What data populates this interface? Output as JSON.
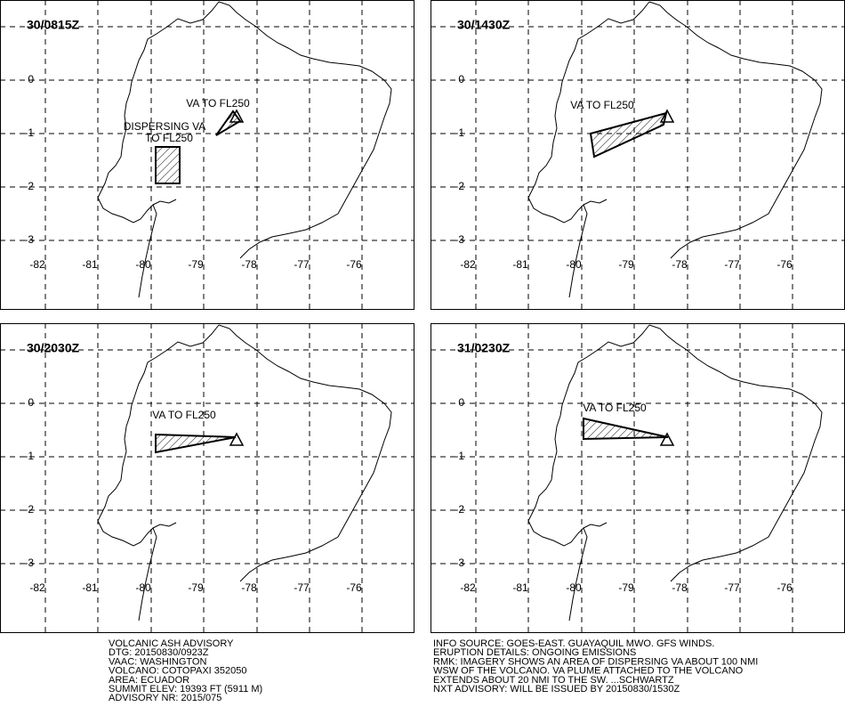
{
  "panels": [
    {
      "time": "30/0815Z",
      "annotations": [
        "VA TO FL250",
        "DISPERSING VA",
        "TO FL250"
      ]
    },
    {
      "time": "30/1430Z",
      "annotations": [
        "VA TO FL250"
      ]
    },
    {
      "time": "30/2030Z",
      "annotations": [
        "VA TO FL250"
      ]
    },
    {
      "time": "31/0230Z",
      "annotations": [
        "VA TO FL250"
      ]
    }
  ],
  "lat_labels": [
    "0",
    "-1",
    "-2",
    "-3"
  ],
  "lon_labels": [
    "-82",
    "-81",
    "-80",
    "-79",
    "-78",
    "-77",
    "-76"
  ],
  "advisory_left": [
    "VOLCANIC ASH ADVISORY",
    "DTG: 20150830/0923Z",
    "VAAC: WASHINGTON",
    "VOLCANO: COTOPAXI 352050",
    "AREA: ECUADOR",
    "SUMMIT ELEV: 19393 FT (5911 M)",
    "ADVISORY NR: 2015/075"
  ],
  "advisory_right": [
    "INFO SOURCE: GOES-EAST. GUAYAQUIL MWO. GFS WINDS.",
    "ERUPTION DETAILS: ONGOING EMISSIONS",
    "RMK: IMAGERY SHOWS AN AREA OF DISPERSING VA ABOUT 100 NMI",
    "WSW OF THE VOLCANO. VA PLUME ATTACHED TO THE VOLCANO",
    "EXTENDS ABOUT 20 NMI TO THE SW. ...SCHWARTZ",
    "NXT ADVISORY: WILL BE ISSUED BY 20150830/1530Z"
  ]
}
